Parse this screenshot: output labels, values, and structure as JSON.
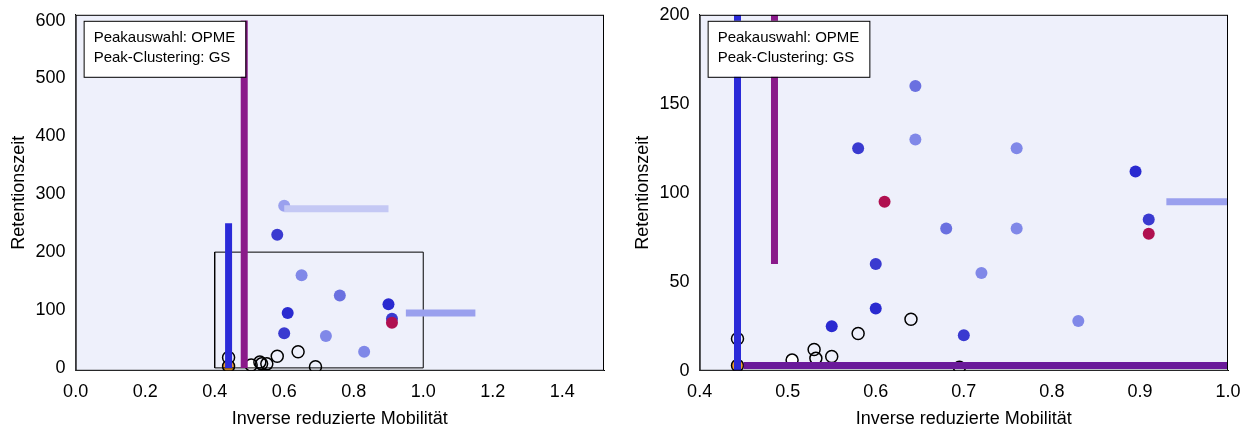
{
  "chart_data": [
    {
      "type": "scatter",
      "xlabel": "Inverse reduzierte Mobilität",
      "ylabel": "Retentionszeit",
      "annotation": [
        "Peakauswahl: OPME",
        "Peak-Clustering: GS"
      ],
      "xlim": [
        0,
        1.52
      ],
      "ylim": [
        -5,
        610
      ],
      "xticks": [
        {
          "value": 0,
          "label": "0.0"
        },
        0.2,
        0.4,
        0.6,
        0.8,
        {
          "value": 1,
          "label": "1.0"
        },
        1.2,
        1.4
      ],
      "yticks": [
        0,
        100,
        200,
        300,
        400,
        500,
        600
      ],
      "grid": false,
      "box": {
        "x": [
          0.4,
          1.0
        ],
        "y": [
          0,
          200
        ]
      },
      "bands": [
        {
          "x": [
            0.44,
            0.44
          ],
          "y": [
            0,
            250
          ],
          "color": "#2a2ad8"
        },
        {
          "x": [
            0.485,
            0.485
          ],
          "y": [
            0,
            600
          ],
          "color": "#8a1a8a"
        },
        {
          "x": [
            0.95,
            1.15
          ],
          "y": [
            95,
            95
          ],
          "color": "#9aa0ee"
        },
        {
          "x": [
            0.6,
            0.9
          ],
          "y": [
            275,
            275
          ],
          "color": "#c4c8f4"
        }
      ],
      "blobs": {
        "x": [
          0.58,
          0.61,
          0.6,
          0.9,
          0.91,
          0.91,
          0.65,
          0.76,
          0.72,
          0.83,
          0.6
        ],
        "y": [
          230,
          95,
          280,
          110,
          85,
          78,
          160,
          125,
          55,
          28,
          60
        ],
        "colors": [
          "#3a3ad0",
          "#2a2ad0",
          "#9aa0ee",
          "#2a2ad0",
          "#3a3ad0",
          "#b01050",
          "#8088e8",
          "#6a70e0",
          "#8088e8",
          "#8088e8",
          "#3a3ad0"
        ]
      },
      "peaks": {
        "x": [
          0.44,
          0.44,
          0.505,
          0.53,
          0.535,
          0.55,
          0.58,
          0.64,
          0.69
        ],
        "y": [
          18,
          3,
          5,
          10,
          7,
          7,
          20,
          28,
          2
        ],
        "colors": [
          "none",
          "#f0a030",
          "#ffffff",
          "none",
          "none",
          "none",
          "none",
          "none",
          "none"
        ]
      }
    },
    {
      "type": "scatter",
      "xlabel": "Inverse reduzierte Mobilität",
      "ylabel": "Retentionszeit",
      "annotation": [
        "Peakauswahl: OPME",
        "Peak-Clustering: GS"
      ],
      "xlim": [
        0.4,
        1.0
      ],
      "ylim": [
        0,
        200
      ],
      "xticks": [
        0.4,
        0.5,
        0.6,
        0.7,
        0.8,
        0.9,
        {
          "value": 1,
          "label": "1.0"
        }
      ],
      "yticks": [
        0,
        50,
        100,
        150,
        200
      ],
      "grid": false,
      "bands": [
        {
          "x": [
            0.443,
            0.443
          ],
          "y": [
            0,
            200
          ],
          "color": "#2a2ad8"
        },
        {
          "x": [
            0.485,
            0.485
          ],
          "y": [
            60,
            200
          ],
          "color": "#8a1a8a"
        },
        {
          "x": [
            0.93,
            1.0
          ],
          "y": [
            95,
            95
          ],
          "color": "#9aa0ee"
        },
        {
          "x": [
            0.45,
            1.0
          ],
          "y": [
            3,
            3
          ],
          "color": "#6a1a9a"
        }
      ],
      "blobs": {
        "x": [
          0.61,
          0.645,
          0.645,
          0.58,
          0.68,
          0.76,
          0.76,
          0.895,
          0.91,
          0.91,
          0.72,
          0.83,
          0.6,
          0.6,
          0.55,
          0.7
        ],
        "y": [
          95,
          160,
          130,
          125,
          80,
          125,
          80,
          112,
          85,
          77,
          55,
          28,
          60,
          35,
          25,
          20
        ],
        "colors": [
          "#b01050",
          "#6a70e0",
          "#8088e8",
          "#3a3ad0",
          "#6a70e0",
          "#8088e8",
          "#8088e8",
          "#2a2ad0",
          "#3a3ad0",
          "#b01050",
          "#8088e8",
          "#8088e8",
          "#3a3ad0",
          "#2a2ad0",
          "#2a2ad0",
          "#3a3ad0"
        ]
      },
      "peaks": {
        "x": [
          0.443,
          0.443,
          0.505,
          0.53,
          0.532,
          0.55,
          0.58,
          0.64,
          0.695
        ],
        "y": [
          18,
          3,
          6,
          12,
          7,
          8,
          21,
          29,
          2
        ],
        "colors": [
          "none",
          "#f0a030",
          "#ffffff",
          "none",
          "none",
          "none",
          "none",
          "none",
          "none"
        ]
      }
    }
  ]
}
